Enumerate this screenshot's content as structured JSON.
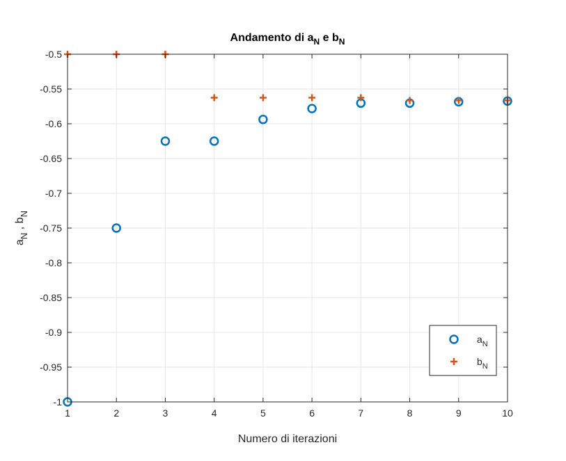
{
  "chart_data": {
    "type": "scatter",
    "title": {
      "base": "Andamento di ",
      "a": "a",
      "a_sub": "N",
      "mid": " e ",
      "b": "b",
      "b_sub": "N"
    },
    "xlabel": "Numero di iterazioni",
    "ylabel": {
      "a": "a",
      "a_sub": "N",
      "sep": " , ",
      "b": "b",
      "b_sub": "N"
    },
    "xlim": [
      1,
      10
    ],
    "ylim": [
      -1,
      -0.5
    ],
    "x_ticks": [
      "1",
      "2",
      "3",
      "4",
      "5",
      "6",
      "7",
      "8",
      "9",
      "10"
    ],
    "y_ticks": [
      "-0.5",
      "-0.55",
      "-0.6",
      "-0.65",
      "-0.7",
      "-0.75",
      "-0.8",
      "-0.85",
      "-0.9",
      "-0.95",
      "-1"
    ],
    "grid": true,
    "legend_position": "bottom-right",
    "series": [
      {
        "name": {
          "base": "a",
          "sub": "N"
        },
        "marker": "circle",
        "color": "#0072BD",
        "x": [
          1,
          2,
          3,
          4,
          5,
          6,
          7,
          8,
          9,
          10
        ],
        "y": [
          -1.0,
          -0.75,
          -0.625,
          -0.625,
          -0.5938,
          -0.5781,
          -0.5703,
          -0.5703,
          -0.5684,
          -0.5674
        ]
      },
      {
        "name": {
          "base": "b",
          "sub": "N"
        },
        "marker": "plus",
        "color": "#D95319",
        "x": [
          1,
          2,
          3,
          4,
          5,
          6,
          7,
          8,
          9,
          10
        ],
        "y": [
          -0.5,
          -0.5,
          -0.5,
          -0.5625,
          -0.5625,
          -0.5625,
          -0.5625,
          -0.5664,
          -0.5664,
          -0.5664
        ]
      }
    ]
  }
}
